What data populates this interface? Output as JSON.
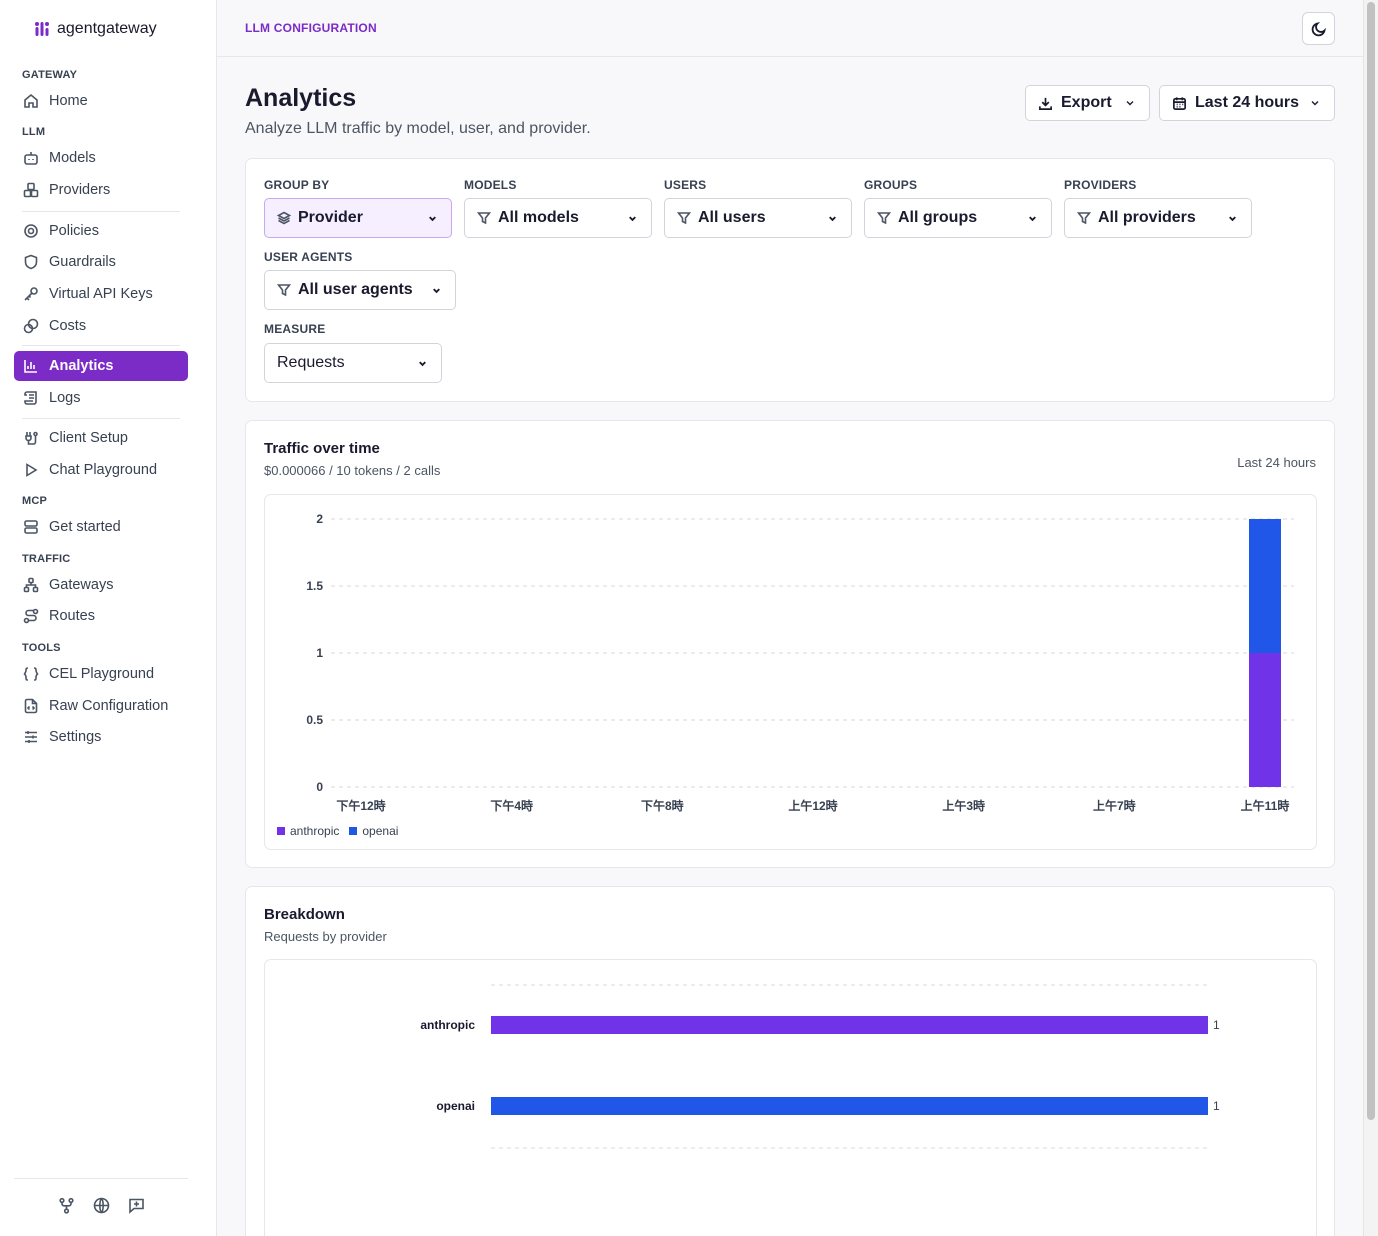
{
  "brand": {
    "name": "agentgateway"
  },
  "nav": {
    "sections": {
      "gateway": "GATEWAY",
      "llm": "LLM",
      "mcp": "MCP",
      "traffic": "TRAFFIC",
      "tools": "TOOLS"
    },
    "items": {
      "home": "Home",
      "models": "Models",
      "providers": "Providers",
      "policies": "Policies",
      "guardrails": "Guardrails",
      "virtual_api_keys": "Virtual API Keys",
      "costs": "Costs",
      "analytics": "Analytics",
      "logs": "Logs",
      "client_setup": "Client Setup",
      "chat_playground": "Chat Playground",
      "get_started": "Get started",
      "gateways": "Gateways",
      "routes": "Routes",
      "cel_playground": "CEL Playground",
      "raw_configuration": "Raw Configuration",
      "settings": "Settings"
    },
    "active": "analytics"
  },
  "topbar": {
    "breadcrumb": "LLM CONFIGURATION"
  },
  "header": {
    "title": "Analytics",
    "subtitle": "Analyze LLM traffic by model, user, and provider.",
    "export_label": "Export",
    "range_label": "Last 24 hours"
  },
  "filters": {
    "group_by": {
      "label": "GROUP BY",
      "value": "Provider"
    },
    "models": {
      "label": "MODELS",
      "value": "All models"
    },
    "users": {
      "label": "USERS",
      "value": "All users"
    },
    "groups": {
      "label": "GROUPS",
      "value": "All groups"
    },
    "providers": {
      "label": "PROVIDERS",
      "value": "All providers"
    },
    "user_agents": {
      "label": "USER AGENTS",
      "value": "All user agents"
    },
    "measure": {
      "label": "MEASURE",
      "value": "Requests"
    }
  },
  "traffic": {
    "title": "Traffic over time",
    "summary": "$0.000066 / 10 tokens / 2 calls",
    "range": "Last 24 hours"
  },
  "breakdown": {
    "title": "Breakdown",
    "subtitle": "Requests by provider"
  },
  "colors": {
    "anthropic": "#7133e8",
    "openai": "#2157e8",
    "accent": "#7b2bc6"
  },
  "chart_data": [
    {
      "type": "bar",
      "stacked": true,
      "x_ticks": [
        "下午12時",
        "下午4時",
        "下午8時",
        "上午12時",
        "上午3時",
        "上午7時",
        "上午11時"
      ],
      "y_ticks": [
        "0",
        "0.5",
        "1",
        "1.5",
        "2"
      ],
      "ylim": [
        0,
        2
      ],
      "categories": [
        "上午11時"
      ],
      "series": [
        {
          "name": "anthropic",
          "values": [
            1
          ]
        },
        {
          "name": "openai",
          "values": [
            1
          ]
        }
      ],
      "grid": true,
      "legend": "bottom-left"
    },
    {
      "type": "bar",
      "orientation": "horizontal",
      "categories": [
        "anthropic",
        "openai"
      ],
      "values": [
        1,
        1
      ],
      "data_labels": [
        "1",
        "1"
      ],
      "xlim": [
        0,
        1
      ],
      "grid": true
    }
  ]
}
